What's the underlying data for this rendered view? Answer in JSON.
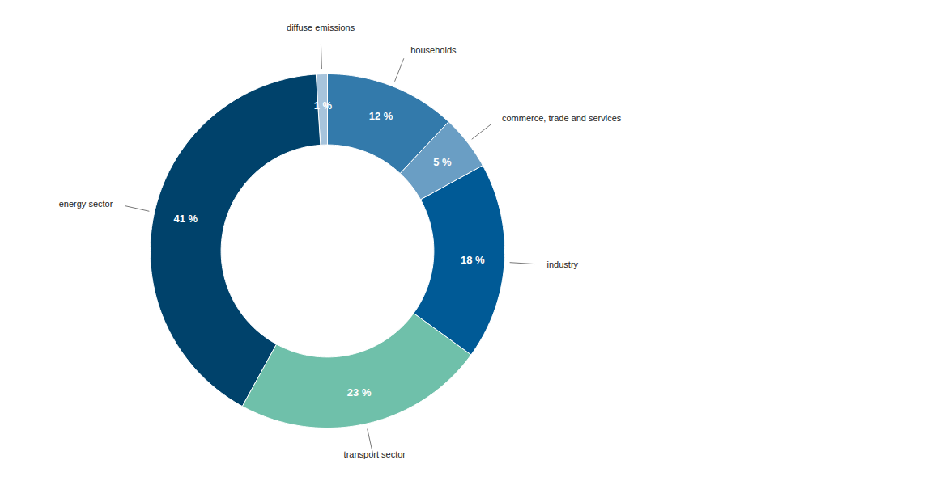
{
  "chart_data": {
    "type": "pie",
    "categories": [
      "households",
      "commerce, trade and services",
      "industry",
      "transport sector",
      "energy sector",
      "diffuse emissions"
    ],
    "values": [
      12,
      5,
      18,
      23,
      41,
      1
    ],
    "value_labels": [
      "12 %",
      "5 %",
      "18 %",
      "23 %",
      "41 %",
      "1 %"
    ],
    "colors": [
      "#337aab",
      "#6a9ec4",
      "#005a96",
      "#6fc0aa",
      "#00426b",
      "#a7c4dc"
    ],
    "data_labels": true
  }
}
